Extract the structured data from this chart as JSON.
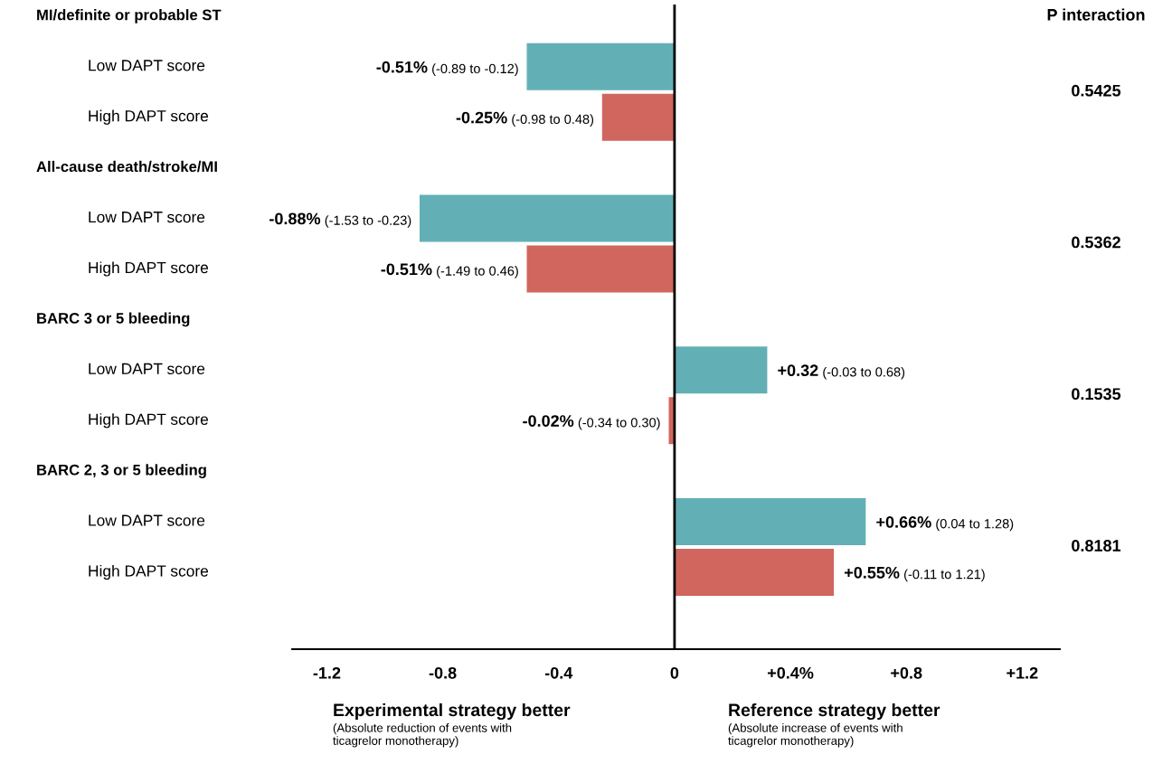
{
  "chart_data": {
    "type": "bar",
    "orientation": "horizontal",
    "categories": [
      null,
      "Low DAPT score",
      "High DAPT score",
      null,
      "Low DAPT score",
      "High DAPT score",
      null,
      "Low DAPT score",
      "High DAPT score",
      null,
      "Low DAPT score",
      "High DAPT score"
    ],
    "series": [
      {
        "color": "#62b0b5",
        "values": [
          null,
          -0.51,
          null,
          null,
          -0.88,
          null,
          null,
          0.32,
          null,
          null,
          0.66,
          null
        ],
        "value_labels": [
          null,
          "-0.51% (-0.89 to -0.12)",
          null,
          null,
          "-0.88% (-1.53 to -0.23)",
          null,
          null,
          "+0.32 (-0.03 to 0.68)",
          null,
          null,
          "+0.66% (0.04 to 1.28)",
          null
        ]
      },
      {
        "color": "#d0665e",
        "values": [
          null,
          null,
          -0.25,
          null,
          null,
          -0.51,
          null,
          null,
          -0.02,
          null,
          null,
          0.55
        ],
        "value_labels": [
          null,
          null,
          "-0.25% (-0.98 to 0.48)",
          null,
          null,
          "-0.51% (-1.49 to 0.46)",
          null,
          null,
          "-0.02% (-0.34 to 0.30)",
          null,
          null,
          "+0.55% (-0.11 to 1.21)"
        ]
      }
    ],
    "xlim": [
      -1.32,
      1.33
    ],
    "xticks": [
      {
        "value": -1.2,
        "label": "-1.2"
      },
      {
        "value": -0.8,
        "label": "-0.8"
      },
      {
        "value": -0.4,
        "label": "-0.4"
      },
      0,
      {
        "value": 0.4,
        "label": "+0.4%"
      },
      {
        "value": 0.8,
        "label": "+0.8"
      },
      {
        "value": 1.2,
        "label": "+1.2"
      }
    ],
    "ref_lines": [
      {
        "axis": "x",
        "value": 0,
        "color": "#000000"
      }
    ],
    "grid": false,
    "annotations": [
      "MI/definite or probable ST",
      "All-cause death/stroke/MI",
      "BARC 3 or 5 bleeding",
      "BARC 2, 3 or 5 bleeding",
      "P interaction",
      "0.5425",
      "0.5362",
      "0.1535",
      "0.8181",
      "Experimental strategy better",
      "(Absolute reduction of events with\nticagrelor monotherapy)",
      "Reference strategy better",
      "(Absolute increase of events with\nticagrelor monotherapy)"
    ]
  }
}
